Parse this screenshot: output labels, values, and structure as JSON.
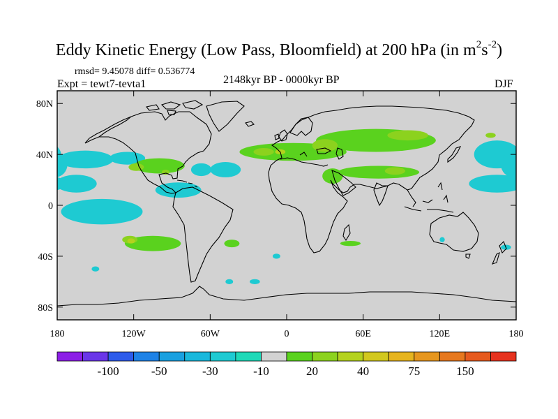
{
  "chart_data": {
    "type": "heatmap",
    "projection": "cylindrical-equidistant",
    "title_main": "Eddy Kinetic Energy (Low Pass, Bloomfield) at 200 hPa (in m",
    "title_sup1": "2",
    "title_mid": "s",
    "title_sup2": "-2",
    "title_end": ")",
    "stats": "rmsd= 9.45078 diff= 0.536774",
    "left_label": "Expt = tewt7-tevta1",
    "center_label": "2148kyr BP - 0000kyr BP",
    "right_label": "DJF",
    "lon_range": [
      -180,
      180
    ],
    "lat_range": [
      -90,
      90
    ],
    "x_ticks": [
      {
        "value": -180,
        "label": "180"
      },
      {
        "value": -120,
        "label": "120W"
      },
      {
        "value": -60,
        "label": "60W"
      },
      {
        "value": 0,
        "label": "0"
      },
      {
        "value": 60,
        "label": "60E"
      },
      {
        "value": 120,
        "label": "120E"
      },
      {
        "value": 180,
        "label": "180"
      }
    ],
    "y_ticks": [
      {
        "value": 80,
        "label": "80N"
      },
      {
        "value": 40,
        "label": "40N"
      },
      {
        "value": 0,
        "label": "0"
      },
      {
        "value": -40,
        "label": "40S"
      },
      {
        "value": -80,
        "label": "80S"
      }
    ],
    "colorbar": {
      "colors": [
        "#8c1ee6",
        "#6a36e8",
        "#2d5bea",
        "#1e82e6",
        "#19a0e0",
        "#19b8dc",
        "#1ecad2",
        "#1ed9b8",
        "#d2d2d2",
        "#5ad21e",
        "#8cd21e",
        "#b4d21e",
        "#d2c81e",
        "#e6b41e",
        "#e6961e",
        "#e6781e",
        "#e65a1e",
        "#e6321e"
      ],
      "labels": [
        {
          "after_index": 1,
          "text": "-100"
        },
        {
          "after_index": 3,
          "text": "-50"
        },
        {
          "after_index": 5,
          "text": "-30"
        },
        {
          "after_index": 7,
          "text": "-10"
        },
        {
          "after_index": 9,
          "text": "20"
        },
        {
          "after_index": 11,
          "text": "40"
        },
        {
          "after_index": 13,
          "text": "75"
        },
        {
          "after_index": 15,
          "text": "150"
        }
      ]
    },
    "fields": [
      {
        "name": "NPac-west-neg",
        "level": -15,
        "lon": 165,
        "lat": 40,
        "rlon": 18,
        "rlat": 11
      },
      {
        "name": "NPac-west-neg-b",
        "level": -15,
        "lon": 178,
        "lat": 32,
        "rlon": 10,
        "rlat": 10
      },
      {
        "name": "NPac-east-neg",
        "level": -15,
        "lon": -158,
        "lat": 36,
        "rlon": 22,
        "rlat": 7
      },
      {
        "name": "NPac-east-neg-b",
        "level": -15,
        "lon": -125,
        "lat": 37,
        "rlon": 14,
        "rlat": 5
      },
      {
        "name": "subtrop-pac-neg",
        "level": -15,
        "lon": -165,
        "lat": 17,
        "rlon": 16,
        "rlat": 7
      },
      {
        "name": "trop-pac-neg",
        "level": -15,
        "lon": -145,
        "lat": -5,
        "rlon": 32,
        "rlat": 10
      },
      {
        "name": "trop-pac-neg-b",
        "level": -15,
        "lon": -85,
        "lat": 12,
        "rlon": 18,
        "rlat": 6
      },
      {
        "name": "NAtl-neg",
        "level": -15,
        "lon": -67,
        "lat": 28,
        "rlon": 8,
        "rlat": 5
      },
      {
        "name": "NAtl-neg-b",
        "level": -15,
        "lon": -48,
        "lat": 28,
        "rlon": 12,
        "rlat": 6
      },
      {
        "name": "WPac-neg",
        "level": -15,
        "lon": 165,
        "lat": 17,
        "rlon": 22,
        "rlat": 7
      },
      {
        "name": "SIO-neg",
        "level": -15,
        "lon": 122,
        "lat": -27,
        "rlon": 2,
        "rlat": 2
      },
      {
        "name": "SPac-neg",
        "level": -15,
        "lon": 172,
        "lat": -33,
        "rlon": 4,
        "rlat": 2
      },
      {
        "name": "SAtl-neg",
        "level": -15,
        "lon": -8,
        "lat": -40,
        "rlon": 3,
        "rlat": 2
      },
      {
        "name": "SO-neg",
        "level": -15,
        "lon": -45,
        "lat": -60,
        "rlon": 3,
        "rlat": 2
      },
      {
        "name": "SO-neg-b",
        "level": -15,
        "lon": -25,
        "lat": -60,
        "rlon": 4,
        "rlat": 2
      },
      {
        "name": "SO-neg-c",
        "level": -15,
        "lon": -150,
        "lat": -50,
        "rlon": 3,
        "rlat": 2
      },
      {
        "name": "Euro-pos",
        "level": 15,
        "lon": 5,
        "lat": 42,
        "rlon": 42,
        "rlat": 7
      },
      {
        "name": "Asia-pos",
        "level": 15,
        "lon": 70,
        "lat": 51,
        "rlon": 47,
        "rlat": 9
      },
      {
        "name": "NAmer-pos",
        "level": 15,
        "lon": -100,
        "lat": 31,
        "rlon": 20,
        "rlat": 6
      },
      {
        "name": "SubAsia-pos",
        "level": 15,
        "lon": 72,
        "lat": 26,
        "rlon": 32,
        "rlat": 5
      },
      {
        "name": "Mideast-pos",
        "level": 15,
        "lon": 36,
        "lat": 23,
        "rlon": 8,
        "rlat": 6
      },
      {
        "name": "SPac-pos",
        "level": 15,
        "lon": -105,
        "lat": -30,
        "rlon": 22,
        "rlat": 6
      },
      {
        "name": "SAtl-pos",
        "level": 15,
        "lon": -43,
        "lat": -30,
        "rlon": 6,
        "rlat": 3
      },
      {
        "name": "SIO-pos",
        "level": 15,
        "lon": 50,
        "lat": -30,
        "rlon": 8,
        "rlat": 2
      },
      {
        "name": "Euro-core",
        "level": 30,
        "lon": -18,
        "lat": 42,
        "rlon": 8,
        "rlat": 3
      },
      {
        "name": "Euro-core-b",
        "level": 30,
        "lon": 30,
        "lat": 47,
        "rlon": 10,
        "rlat": 5
      },
      {
        "name": "Asia-core",
        "level": 30,
        "lon": 95,
        "lat": 55,
        "rlon": 16,
        "rlat": 4
      },
      {
        "name": "Asia-core-b",
        "level": 30,
        "lon": 160,
        "lat": 55,
        "rlon": 4,
        "rlat": 2
      },
      {
        "name": "NAmer-core",
        "level": 30,
        "lon": -118,
        "lat": 30,
        "rlon": 6,
        "rlat": 3
      },
      {
        "name": "NAmer-core-b",
        "level": 30,
        "lon": -95,
        "lat": 26,
        "rlon": 3,
        "rlat": 2
      },
      {
        "name": "SPac-core",
        "level": 30,
        "lon": -123,
        "lat": -27,
        "rlon": 6,
        "rlat": 3
      },
      {
        "name": "SubAsia-core",
        "level": 30,
        "lon": 85,
        "lat": 27,
        "rlon": 8,
        "rlat": 3
      },
      {
        "name": "Euro-peak",
        "level": 45,
        "lon": -5,
        "lat": 42,
        "rlon": 4,
        "rlat": 2
      },
      {
        "name": "SPac-peak",
        "level": 45,
        "lon": -122,
        "lat": -28,
        "rlon": 3,
        "rlat": 2
      }
    ],
    "level_colors": [
      {
        "level": -15,
        "color": "#1ecad2"
      },
      {
        "level": 15,
        "color": "#5ad21e"
      },
      {
        "level": 30,
        "color": "#8cd21e"
      },
      {
        "level": 45,
        "color": "#b4d21e"
      }
    ],
    "background_color": "#d2d2d2"
  }
}
